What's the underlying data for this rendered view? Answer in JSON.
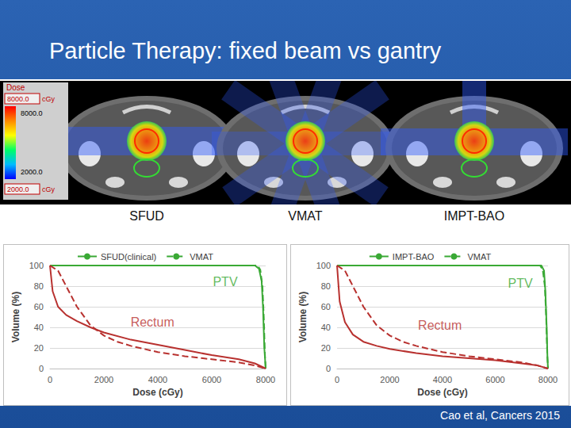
{
  "slide": {
    "title": "Particle Therapy: fixed beam vs gantry",
    "panel_labels": [
      "SFUD",
      "VMAT",
      "IMPT-BAO"
    ],
    "dose_scale": {
      "title": "Dose",
      "max": "8000.0",
      "min": "2000.0",
      "unit": "cGy"
    },
    "source": "Cao et al, Cancers 2015"
  },
  "chart_data": [
    {
      "type": "line",
      "x_label": "Dose (cGy)",
      "y_label": "Volume (%)",
      "xlim": [
        0,
        8000
      ],
      "xticks": [
        0,
        2000,
        4000,
        6000,
        8000
      ],
      "ylim": [
        0,
        100
      ],
      "yticks": [
        0,
        20,
        40,
        60,
        80,
        100
      ],
      "grid": true,
      "legend": "top",
      "annotations": [
        {
          "text": "PTV",
          "x": 6500,
          "y": 84,
          "color": "#3aa935"
        },
        {
          "text": "Rectum",
          "x": 3800,
          "y": 45,
          "color": "#b8312f"
        }
      ],
      "series": [
        {
          "name": "SFUD(clinical)",
          "color": "#3aa935",
          "line_style": "solid",
          "x": [
            0,
            7600,
            7750,
            7850,
            7900,
            7950,
            8000
          ],
          "values": [
            100,
            100,
            97,
            85,
            60,
            20,
            0
          ]
        },
        {
          "name": "VMAT",
          "color": "#3aa935",
          "line_style": "dashed",
          "x": [
            0,
            7700,
            7800,
            7880,
            7930,
            7970,
            8000
          ],
          "values": [
            100,
            100,
            96,
            80,
            50,
            15,
            0
          ]
        },
        {
          "name": "SFUD(clinical)",
          "color": "#b8312f",
          "line_style": "solid",
          "x": [
            0,
            100,
            300,
            600,
            1000,
            1500,
            2000,
            3000,
            4000,
            5000,
            6000,
            7000,
            7600,
            8000
          ],
          "values": [
            100,
            75,
            60,
            52,
            46,
            40,
            35,
            28,
            23,
            18,
            13,
            9,
            5,
            0
          ]
        },
        {
          "name": "VMAT",
          "color": "#b8312f",
          "line_style": "dashed",
          "x": [
            0,
            300,
            600,
            1000,
            1500,
            2000,
            2500,
            3000,
            4000,
            5000,
            6000,
            7000,
            7600,
            8000
          ],
          "values": [
            100,
            95,
            80,
            60,
            42,
            32,
            26,
            22,
            16,
            12,
            9,
            6,
            3,
            0
          ]
        }
      ]
    },
    {
      "type": "line",
      "x_label": "Dose (cGy)",
      "y_label": "Volume (%)",
      "xlim": [
        0,
        8000
      ],
      "xticks": [
        0,
        2000,
        4000,
        6000,
        8000
      ],
      "ylim": [
        0,
        100
      ],
      "yticks": [
        0,
        20,
        40,
        60,
        80,
        100
      ],
      "grid": true,
      "legend": "top",
      "annotations": [
        {
          "text": "PTV",
          "x": 6950,
          "y": 83,
          "color": "#3aa935"
        },
        {
          "text": "Rectum",
          "x": 3900,
          "y": 42,
          "color": "#b8312f"
        }
      ],
      "series": [
        {
          "name": "IMPT-BAO",
          "color": "#3aa935",
          "line_style": "solid",
          "x": [
            0,
            7750,
            7850,
            7900,
            7950,
            7980,
            8000
          ],
          "values": [
            100,
            100,
            95,
            75,
            40,
            10,
            0
          ]
        },
        {
          "name": "VMAT",
          "color": "#3aa935",
          "line_style": "dashed",
          "x": [
            0,
            7700,
            7800,
            7880,
            7930,
            7970,
            8000
          ],
          "values": [
            100,
            100,
            96,
            80,
            50,
            15,
            0
          ]
        },
        {
          "name": "IMPT-BAO",
          "color": "#b8312f",
          "line_style": "solid",
          "x": [
            0,
            100,
            300,
            600,
            1000,
            1500,
            2000,
            3000,
            4000,
            5000,
            6000,
            7000,
            7600,
            8000
          ],
          "values": [
            100,
            65,
            45,
            33,
            26,
            22,
            19,
            15,
            12,
            10,
            8,
            5,
            3,
            0
          ]
        },
        {
          "name": "VMAT",
          "color": "#b8312f",
          "line_style": "dashed",
          "x": [
            0,
            300,
            600,
            1000,
            1500,
            2000,
            2500,
            3000,
            4000,
            5000,
            6000,
            7000,
            7600,
            8000
          ],
          "values": [
            100,
            95,
            80,
            60,
            42,
            32,
            26,
            22,
            16,
            12,
            9,
            6,
            3,
            0
          ]
        }
      ]
    }
  ]
}
